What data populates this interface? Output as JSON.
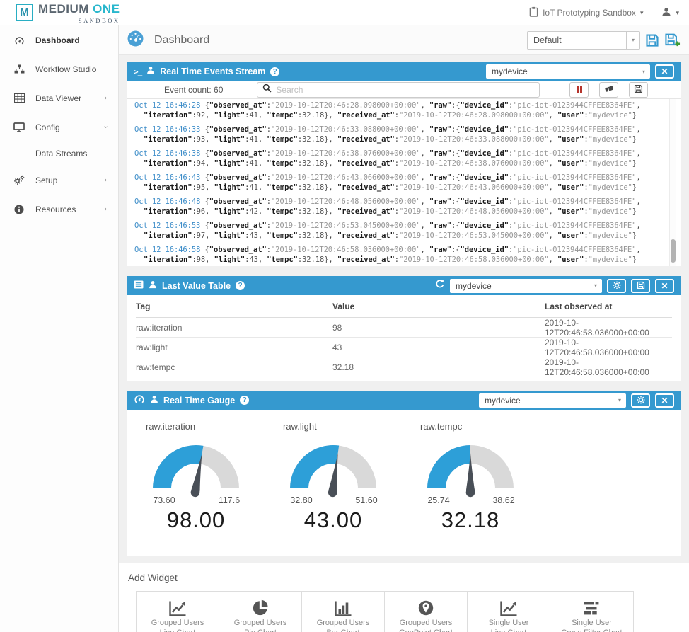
{
  "brand": {
    "logo_letter": "M",
    "name_primary": "MEDIUM ",
    "name_accent": "ONE",
    "subtitle": "SANDBOX"
  },
  "topbar": {
    "workspace": "IoT Prototyping Sandbox"
  },
  "sidebar": {
    "items": [
      {
        "label": "Dashboard",
        "icon": "gauge-icon",
        "active": true,
        "chevron": ""
      },
      {
        "label": "Workflow Studio",
        "icon": "sitemap-icon",
        "active": false,
        "chevron": ""
      },
      {
        "label": "Data Viewer",
        "icon": "table-icon",
        "active": false,
        "chevron": "right"
      },
      {
        "label": "Config",
        "icon": "desktop-icon",
        "active": false,
        "chevron": "down"
      },
      {
        "label": "Data Streams",
        "icon": "",
        "active": false,
        "chevron": "",
        "sub": true
      },
      {
        "label": "Setup",
        "icon": "gears-icon",
        "active": false,
        "chevron": "right"
      },
      {
        "label": "Resources",
        "icon": "info-icon",
        "active": false,
        "chevron": "right"
      }
    ]
  },
  "page_header": {
    "title": "Dashboard",
    "layout_select_value": "Default"
  },
  "events_panel": {
    "title": "Real Time Events Stream",
    "device_select_value": "mydevice",
    "event_count": "Event count: 60",
    "search_placeholder": "Search",
    "device_id": "pic-iot-0123944CFFEE8364FE",
    "user": "mydevice",
    "tempc": 32.18,
    "events": [
      {
        "time": "Oct 12 16:46:28",
        "observed_at": "2019-10-12T20:46:28.098000+00:00",
        "iteration": 92,
        "light": 41,
        "received_at": "2019-10-12T20:46:28.098000+00:00"
      },
      {
        "time": "Oct 12 16:46:33",
        "observed_at": "2019-10-12T20:46:33.088000+00:00",
        "iteration": 93,
        "light": 41,
        "received_at": "2019-10-12T20:46:33.088000+00:00"
      },
      {
        "time": "Oct 12 16:46:38",
        "observed_at": "2019-10-12T20:46:38.076000+00:00",
        "iteration": 94,
        "light": 41,
        "received_at": "2019-10-12T20:46:38.076000+00:00"
      },
      {
        "time": "Oct 12 16:46:43",
        "observed_at": "2019-10-12T20:46:43.066000+00:00",
        "iteration": 95,
        "light": 41,
        "received_at": "2019-10-12T20:46:43.066000+00:00"
      },
      {
        "time": "Oct 12 16:46:48",
        "observed_at": "2019-10-12T20:46:48.056000+00:00",
        "iteration": 96,
        "light": 42,
        "received_at": "2019-10-12T20:46:48.056000+00:00"
      },
      {
        "time": "Oct 12 16:46:53",
        "observed_at": "2019-10-12T20:46:53.045000+00:00",
        "iteration": 97,
        "light": 43,
        "received_at": "2019-10-12T20:46:53.045000+00:00"
      },
      {
        "time": "Oct 12 16:46:58",
        "observed_at": "2019-10-12T20:46:58.036000+00:00",
        "iteration": 98,
        "light": 43,
        "received_at": "2019-10-12T20:46:58.036000+00:00"
      }
    ]
  },
  "table_panel": {
    "title": "Last Value Table",
    "device_select_value": "mydevice",
    "columns": [
      "Tag",
      "Value",
      "Last observed at"
    ],
    "rows": [
      [
        "raw:iteration",
        "98",
        "2019-10-12T20:46:58.036000+00:00"
      ],
      [
        "raw:light",
        "43",
        "2019-10-12T20:46:58.036000+00:00"
      ],
      [
        "raw:tempc",
        "32.18",
        "2019-10-12T20:46:58.036000+00:00"
      ]
    ]
  },
  "gauge_panel": {
    "title": "Real Time Gauge",
    "device_select_value": "mydevice",
    "chart_data": [
      {
        "type": "gauge",
        "title": "raw.iteration",
        "min": 73.6,
        "max": 117.6,
        "value": 98.0,
        "min_label": "73.60",
        "max_label": "117.6",
        "value_label": "98.00"
      },
      {
        "type": "gauge",
        "title": "raw.light",
        "min": 32.8,
        "max": 51.6,
        "value": 43.0,
        "min_label": "32.80",
        "max_label": "51.60",
        "value_label": "43.00"
      },
      {
        "type": "gauge",
        "title": "raw.tempc",
        "min": 25.74,
        "max": 38.62,
        "value": 32.18,
        "min_label": "25.74",
        "max_label": "38.62",
        "value_label": "32.18"
      }
    ]
  },
  "add_widget": {
    "title": "Add Widget",
    "cards": [
      {
        "line1": "Grouped Users",
        "line2": "Line Chart",
        "icon": "line-chart-icon"
      },
      {
        "line1": "Grouped Users",
        "line2": "Pie Chart",
        "icon": "pie-chart-icon"
      },
      {
        "line1": "Grouped Users",
        "line2": "Bar Chart",
        "icon": "bar-chart-icon"
      },
      {
        "line1": "Grouped Users",
        "line2": "GeoPoint Chart",
        "icon": "geopoint-chart-icon"
      },
      {
        "line1": "Single User",
        "line2": "Line Chart",
        "icon": "line-chart-icon"
      },
      {
        "line1": "Single User",
        "line2": "Cross Filter Chart",
        "icon": "cross-filter-chart-icon"
      }
    ]
  },
  "colors": {
    "panel_header_blue": "#3599cf",
    "gauge_blue": "#2d9fd8",
    "gauge_track_gray": "#d9d9d9",
    "needle_gray": "#494f57",
    "timestamp_blue": "#3f8ec9",
    "pause_red": "#b5342c",
    "brand_teal": "#29b7cd",
    "save_plus_green": "#3f9c35"
  }
}
